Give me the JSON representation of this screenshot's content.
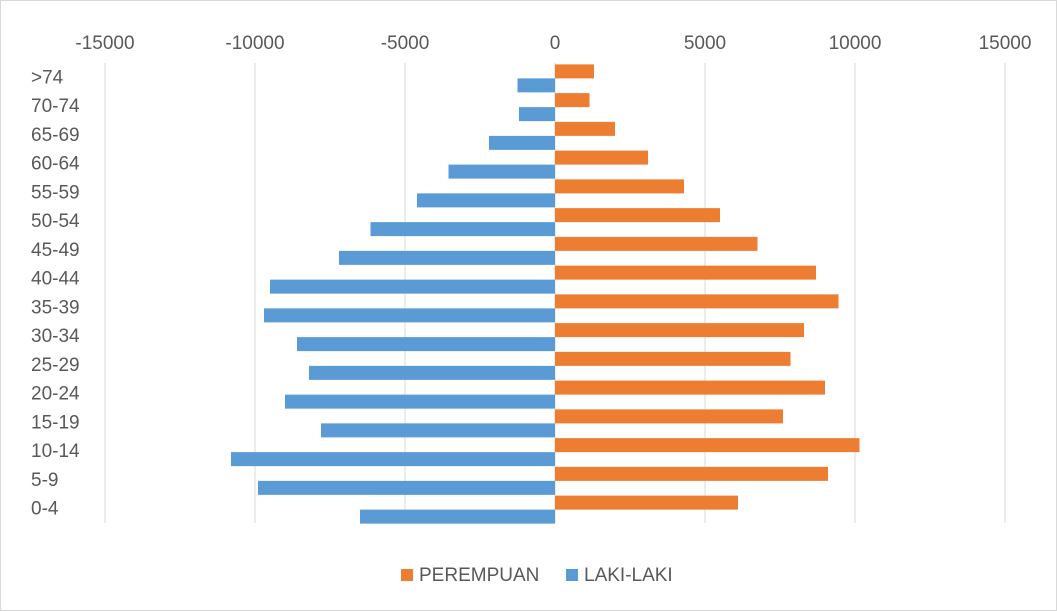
{
  "chart_data": {
    "type": "bar",
    "orientation": "horizontal",
    "title": "",
    "xlabel": "",
    "ylabel": "",
    "xlim": [
      -15000,
      15000
    ],
    "x_ticks": [
      -15000,
      -10000,
      -5000,
      0,
      5000,
      10000,
      15000
    ],
    "x_tick_labels": [
      "-15000",
      "-10000",
      "-5000",
      "0",
      "5000",
      "10000",
      "15000"
    ],
    "x_axis_position": "top",
    "grid": "vertical",
    "legend_position": "bottom",
    "categories": [
      "0-4",
      "5-9",
      "10-14",
      "15-19",
      "20-24",
      "25-29",
      "30-34",
      "35-39",
      "40-44",
      "45-49",
      "50-54",
      "55-59",
      "60-64",
      "65-69",
      "70-74",
      ">74"
    ],
    "series": [
      {
        "name": "PEREMPUAN",
        "color": "#ED7D31",
        "values": [
          6100,
          9100,
          10150,
          7600,
          9000,
          7850,
          8300,
          9450,
          8700,
          6750,
          5500,
          4300,
          3100,
          2000,
          1150,
          1300
        ]
      },
      {
        "name": "LAKI-LAKI",
        "color": "#5B9BD5",
        "values": [
          -6500,
          -9900,
          -10800,
          -7800,
          -9000,
          -8200,
          -8600,
          -9700,
          -9500,
          -7200,
          -6150,
          -4600,
          -3550,
          -2200,
          -1200,
          -1250
        ]
      }
    ]
  }
}
